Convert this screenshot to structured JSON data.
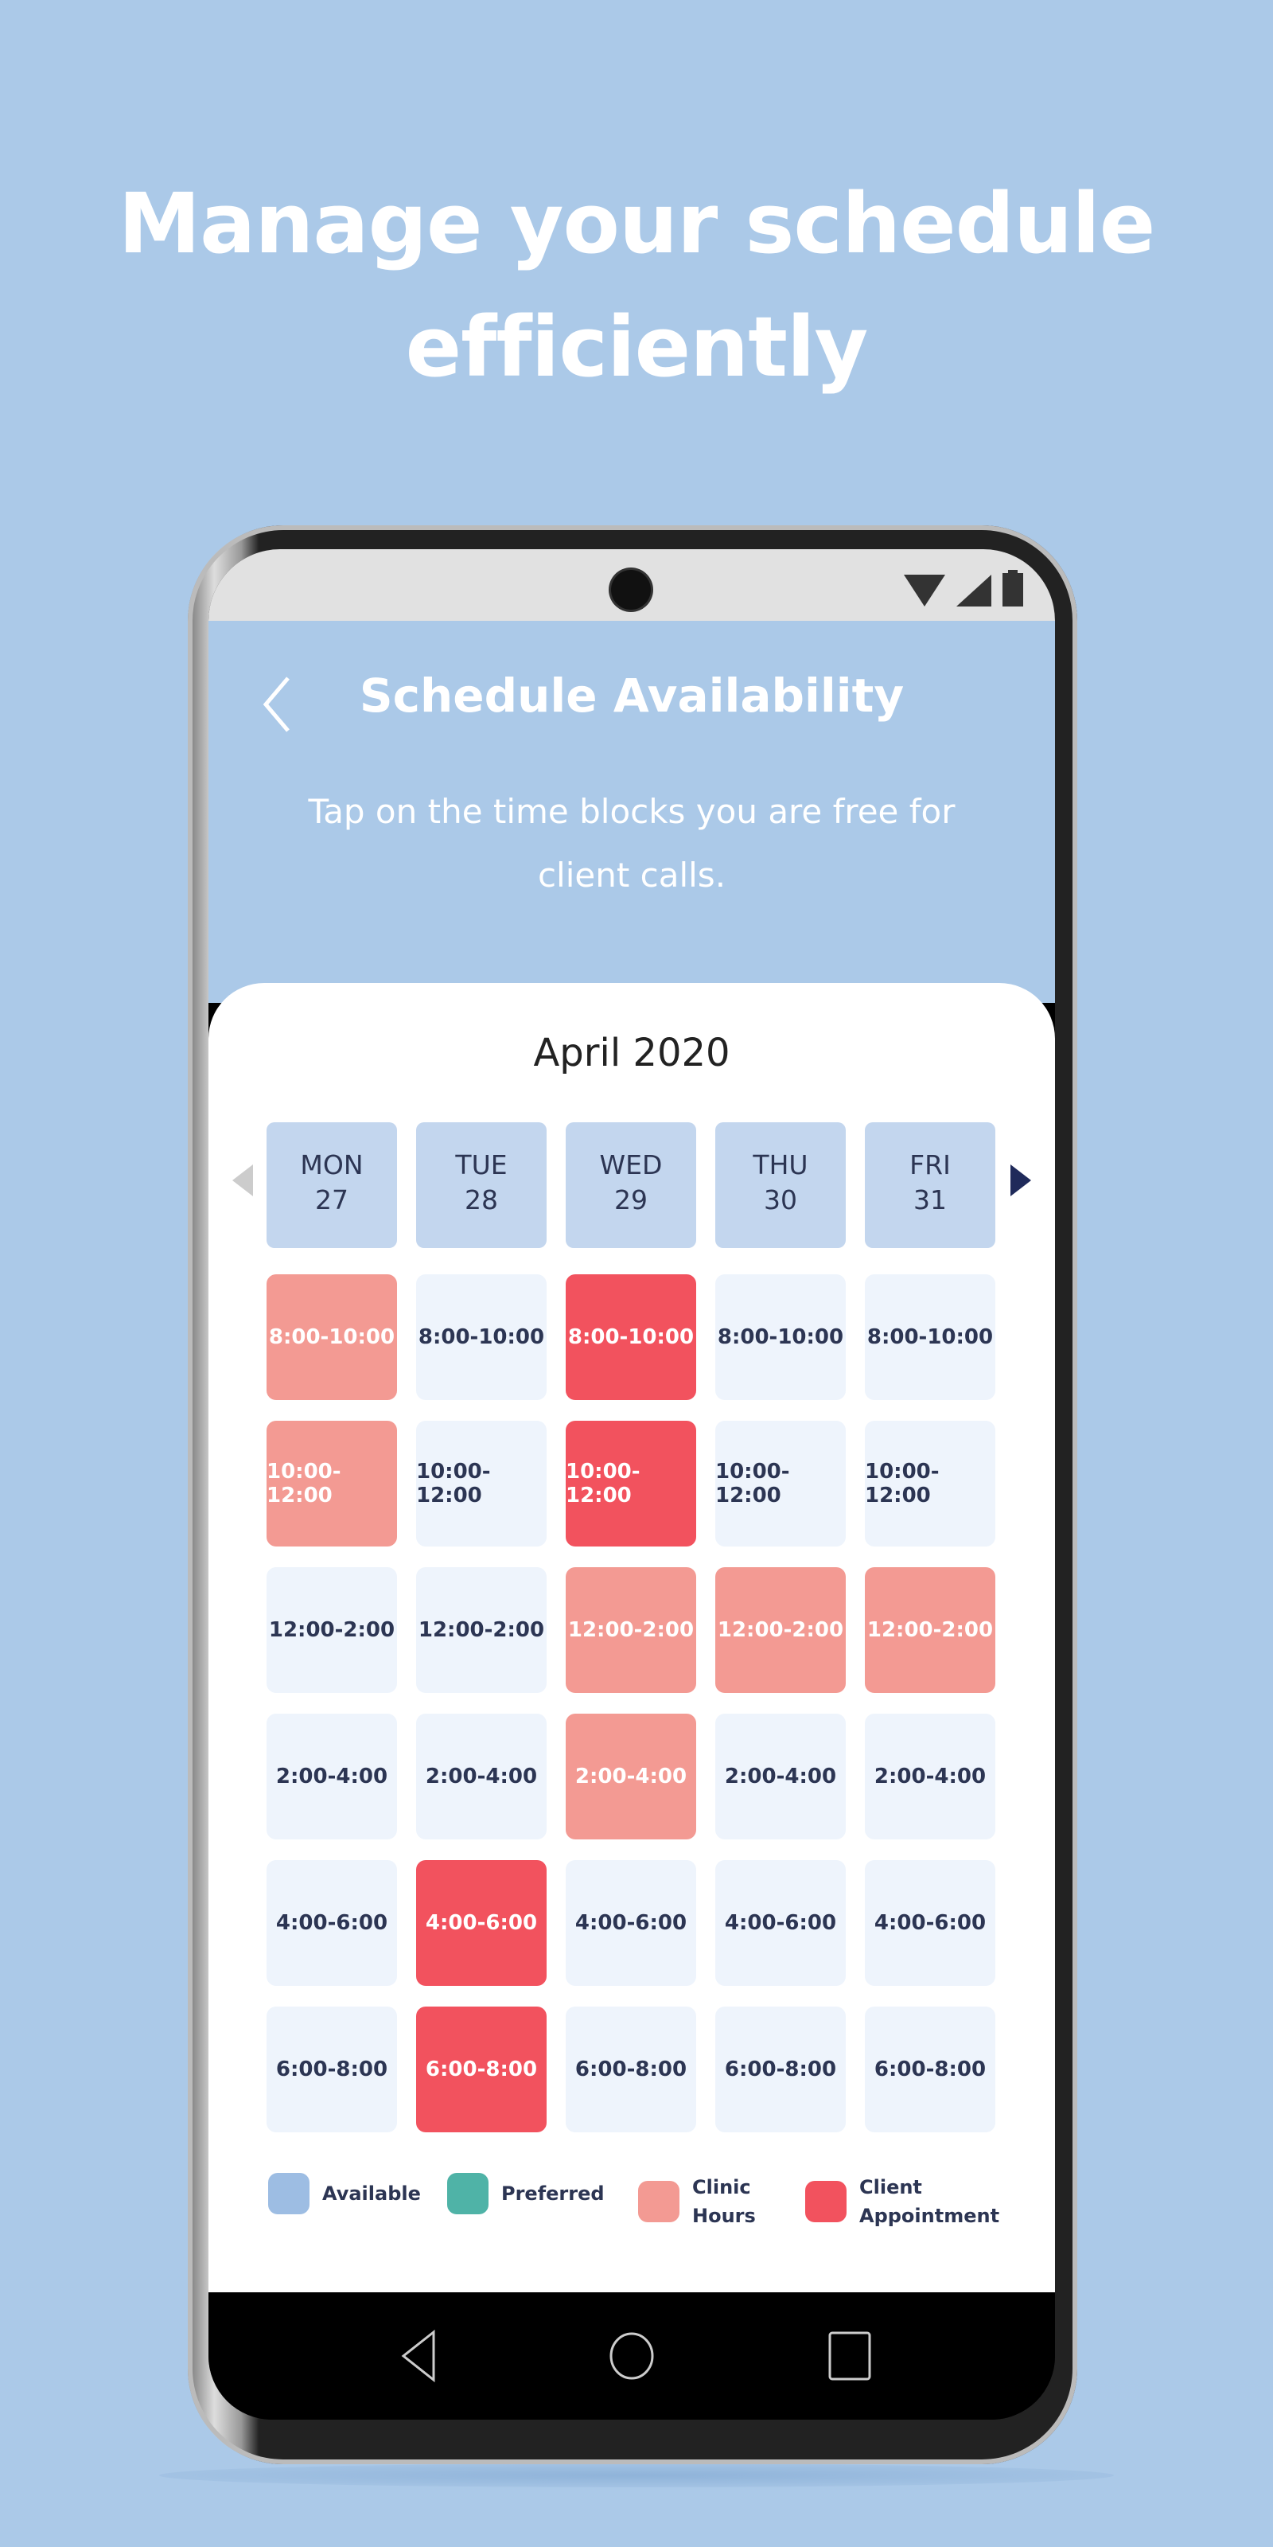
{
  "headline": [
    "Manage your schedule",
    "efficiently"
  ],
  "screen": {
    "title": "Schedule Availability",
    "subtitle": [
      "Tap on the time blocks you are free for",
      "client calls."
    ],
    "month": "April 2020",
    "days": [
      {
        "name": "MON",
        "date": "27"
      },
      {
        "name": "TUE",
        "date": "28"
      },
      {
        "name": "WED",
        "date": "29"
      },
      {
        "name": "THU",
        "date": "30"
      },
      {
        "name": "FRI",
        "date": "31"
      }
    ],
    "time_slots": [
      "8:00-10:00",
      "10:00-12:00",
      "12:00-2:00",
      "2:00-4:00",
      "4:00-6:00",
      "6:00-8:00"
    ],
    "slot_status": [
      [
        "clinic",
        "clinic",
        "available",
        "available",
        "available",
        "available"
      ],
      [
        "available",
        "available",
        "available",
        "available",
        "client",
        "client"
      ],
      [
        "client",
        "client",
        "clinic",
        "clinic",
        "available",
        "available"
      ],
      [
        "available",
        "available",
        "clinic",
        "available",
        "available",
        "available"
      ],
      [
        "available",
        "available",
        "clinic",
        "available",
        "available",
        "available"
      ]
    ],
    "legend": [
      {
        "label": "Available",
        "color": "#9dbde3"
      },
      {
        "label": "Preferred",
        "color": "#4fb3a7"
      },
      {
        "label": "Clinic Hours",
        "color": "#f39a93"
      },
      {
        "label": "Client Appointment",
        "color": "#f2525e"
      }
    ]
  },
  "colors": {
    "background": "#abc9e8",
    "clinic": "#f39a93",
    "client": "#f2525e",
    "available": "#eef4fc"
  }
}
